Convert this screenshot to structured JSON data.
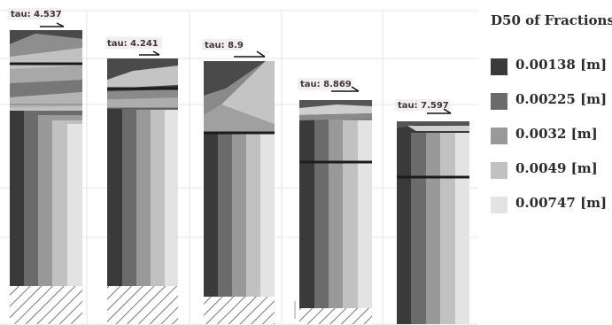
{
  "legend": {
    "title": "D50 of Fractions:",
    "items": [
      {
        "label": "0.00138 [m]",
        "color": "#3a3a3a"
      },
      {
        "label": "0.00225 [m]",
        "color": "#6b6b6b"
      },
      {
        "label": "0.0032 [m]",
        "color": "#999999"
      },
      {
        "label": "0.0049 [m]",
        "color": "#c1c1c1"
      },
      {
        "label": "0.00747 [m]",
        "color": "#e3e3e3"
      }
    ]
  },
  "columns": [
    {
      "tau": "tau: 4.537"
    },
    {
      "tau": "tau: 4.241"
    },
    {
      "tau": "tau: 8.9"
    },
    {
      "tau": "tau: 8.869"
    },
    {
      "tau": "tau: 7.597"
    }
  ]
}
